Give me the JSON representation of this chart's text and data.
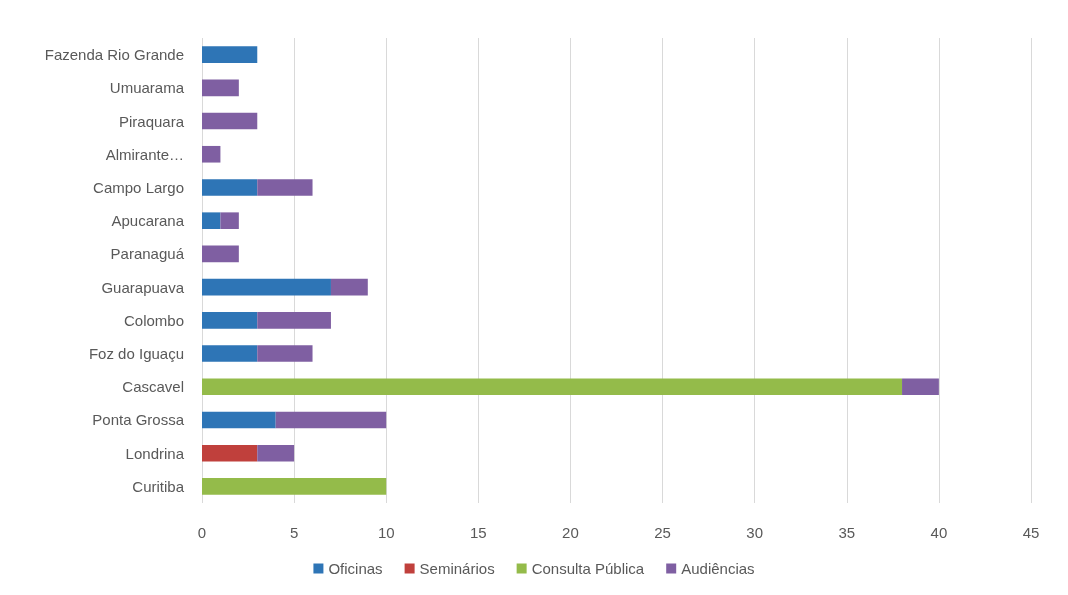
{
  "chart_data": {
    "type": "bar",
    "orientation": "horizontal",
    "stacked": true,
    "categories": [
      "Fazenda Rio Grande",
      "Umuarama",
      "Piraquara",
      "Almirante…",
      "Campo Largo",
      "Apucarana",
      "Paranaguá",
      "Guarapuava",
      "Colombo",
      "Foz do Iguaçu",
      "Cascavel",
      "Ponta Grossa",
      "Londrina",
      "Curitiba"
    ],
    "series": [
      {
        "name": "Oficinas",
        "color": "#2e75b6",
        "values": [
          3,
          null,
          null,
          null,
          3,
          1,
          null,
          7,
          3,
          3,
          null,
          4,
          null,
          null
        ]
      },
      {
        "name": "Seminários",
        "color": "#c0403c",
        "values": [
          null,
          null,
          null,
          null,
          null,
          null,
          null,
          null,
          null,
          null,
          null,
          null,
          3,
          null
        ]
      },
      {
        "name": "Consulta Pública",
        "color": "#94bb4a",
        "values": [
          null,
          null,
          null,
          null,
          null,
          null,
          null,
          null,
          null,
          null,
          38,
          null,
          null,
          10
        ]
      },
      {
        "name": "Audiências",
        "color": "#7f5fa2",
        "values": [
          null,
          2,
          3,
          1,
          3,
          1,
          2,
          2,
          4,
          3,
          2,
          6,
          2,
          null
        ]
      }
    ],
    "xlim": [
      0,
      45
    ],
    "xticks": [
      0,
      5,
      10,
      15,
      20,
      25,
      30,
      35,
      40,
      45
    ],
    "grid": "x",
    "legend": "bottom"
  }
}
